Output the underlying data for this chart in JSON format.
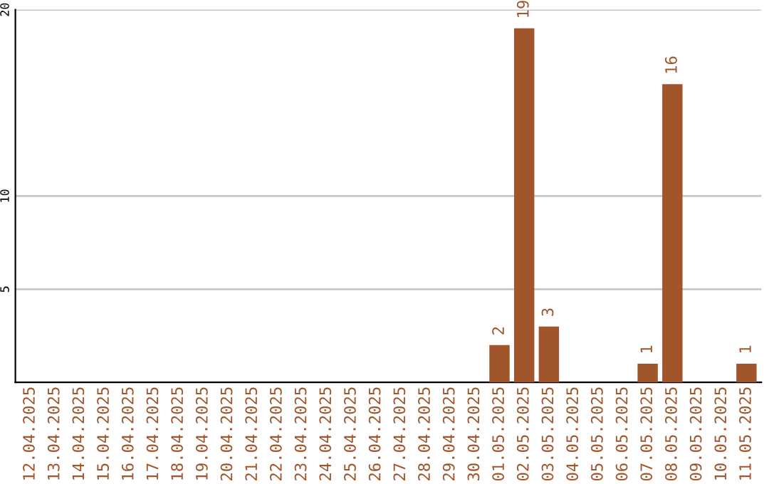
{
  "chart_data": {
    "type": "bar",
    "categories": [
      "12.04.2025",
      "13.04.2025",
      "14.04.2025",
      "15.04.2025",
      "16.04.2025",
      "17.04.2025",
      "18.04.2025",
      "19.04.2025",
      "20.04.2025",
      "21.04.2025",
      "22.04.2025",
      "23.04.2025",
      "24.04.2025",
      "25.04.2025",
      "26.04.2025",
      "27.04.2025",
      "28.04.2025",
      "29.04.2025",
      "30.04.2025",
      "01.05.2025",
      "02.05.2025",
      "03.05.2025",
      "04.05.2025",
      "05.05.2025",
      "06.05.2025",
      "07.05.2025",
      "08.05.2025",
      "09.05.2025",
      "10.05.2025",
      "11.05.2025"
    ],
    "values": [
      0,
      0,
      0,
      0,
      0,
      0,
      0,
      0,
      0,
      0,
      0,
      0,
      0,
      0,
      0,
      0,
      0,
      0,
      0,
      2,
      19,
      3,
      0,
      0,
      0,
      1,
      16,
      0,
      0,
      1
    ],
    "value_labels": [
      null,
      null,
      null,
      null,
      null,
      null,
      null,
      null,
      null,
      null,
      null,
      null,
      null,
      null,
      null,
      null,
      null,
      null,
      null,
      "2",
      "19",
      "3",
      null,
      null,
      null,
      "1",
      "16",
      null,
      null,
      "1"
    ],
    "color": "#a0562a",
    "ylim": [
      0,
      20
    ],
    "yticks": [
      5,
      10,
      20
    ],
    "grid": "y"
  }
}
